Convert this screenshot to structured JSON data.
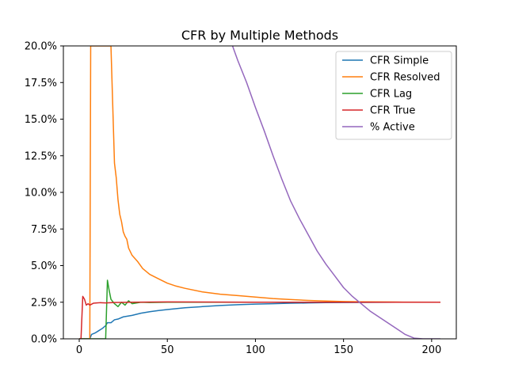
{
  "chart_data": {
    "type": "line",
    "title": "CFR by Multiple Methods",
    "xlabel": "",
    "ylabel": "",
    "xlim": [
      -9,
      214
    ],
    "ylim": [
      0,
      0.2
    ],
    "x_ticks": [
      0,
      50,
      100,
      150,
      200
    ],
    "y_ticks": [
      0,
      0.025,
      0.05,
      0.075,
      0.1,
      0.125,
      0.15,
      0.175,
      0.2
    ],
    "y_tick_labels": [
      "0.0%",
      "2.5%",
      "5.0%",
      "7.5%",
      "10.0%",
      "12.5%",
      "15.0%",
      "17.5%",
      "20.0%"
    ],
    "grid": false,
    "legend_position": "top-right",
    "series": [
      {
        "name": "CFR Simple",
        "color": "#1f77b4",
        "points": [
          [
            0,
            0
          ],
          [
            6,
            0
          ],
          [
            7,
            0.003
          ],
          [
            9,
            0.004
          ],
          [
            11,
            0.0055
          ],
          [
            13,
            0.007
          ],
          [
            15,
            0.009
          ],
          [
            16,
            0.011
          ],
          [
            18,
            0.011
          ],
          [
            20,
            0.013
          ],
          [
            22,
            0.0135
          ],
          [
            25,
            0.015
          ],
          [
            30,
            0.016
          ],
          [
            35,
            0.0175
          ],
          [
            40,
            0.0185
          ],
          [
            45,
            0.0193
          ],
          [
            50,
            0.02
          ],
          [
            60,
            0.0212
          ],
          [
            70,
            0.022
          ],
          [
            80,
            0.0228
          ],
          [
            90,
            0.0233
          ],
          [
            100,
            0.0237
          ],
          [
            110,
            0.024
          ],
          [
            120,
            0.0243
          ],
          [
            130,
            0.0245
          ],
          [
            140,
            0.0247
          ],
          [
            150,
            0.0248
          ],
          [
            160,
            0.0249
          ],
          [
            180,
            0.025
          ],
          [
            205,
            0.025
          ]
        ]
      },
      {
        "name": "CFR Resolved",
        "color": "#ff7f0e",
        "points": [
          [
            0,
            0
          ],
          [
            6,
            0
          ],
          [
            6.5,
            0.2
          ],
          [
            18,
            0.2
          ],
          [
            20,
            0.12
          ],
          [
            21,
            0.11
          ],
          [
            22,
            0.095
          ],
          [
            23,
            0.085
          ],
          [
            24,
            0.08
          ],
          [
            25,
            0.073
          ],
          [
            26,
            0.07
          ],
          [
            27,
            0.068
          ],
          [
            28,
            0.062
          ],
          [
            30,
            0.057
          ],
          [
            33,
            0.053
          ],
          [
            36,
            0.048
          ],
          [
            40,
            0.044
          ],
          [
            45,
            0.041
          ],
          [
            50,
            0.038
          ],
          [
            55,
            0.036
          ],
          [
            60,
            0.0345
          ],
          [
            70,
            0.032
          ],
          [
            80,
            0.0305
          ],
          [
            90,
            0.0295
          ],
          [
            100,
            0.0285
          ],
          [
            110,
            0.0275
          ],
          [
            120,
            0.0268
          ],
          [
            130,
            0.0262
          ],
          [
            140,
            0.0258
          ],
          [
            150,
            0.0255
          ],
          [
            160,
            0.0253
          ],
          [
            180,
            0.0251
          ],
          [
            205,
            0.025
          ]
        ]
      },
      {
        "name": "CFR Lag",
        "color": "#2ca02c",
        "points": [
          [
            0,
            0
          ],
          [
            15,
            0
          ],
          [
            16,
            0.04
          ],
          [
            17,
            0.033
          ],
          [
            18,
            0.027
          ],
          [
            20,
            0.024
          ],
          [
            22,
            0.022
          ],
          [
            24,
            0.025
          ],
          [
            26,
            0.023
          ],
          [
            28,
            0.026
          ],
          [
            30,
            0.024
          ],
          [
            35,
            0.025
          ],
          [
            40,
            0.0248
          ],
          [
            50,
            0.025
          ],
          [
            205,
            0.025
          ]
        ]
      },
      {
        "name": "CFR True",
        "color": "#d62728",
        "points": [
          [
            0,
            0
          ],
          [
            1,
            0
          ],
          [
            2,
            0.029
          ],
          [
            3,
            0.027
          ],
          [
            4,
            0.023
          ],
          [
            5,
            0.024
          ],
          [
            6,
            0.023
          ],
          [
            8,
            0.0243
          ],
          [
            10,
            0.0245
          ],
          [
            12,
            0.0247
          ],
          [
            15,
            0.0245
          ],
          [
            20,
            0.0248
          ],
          [
            30,
            0.025
          ],
          [
            50,
            0.0252
          ],
          [
            100,
            0.025
          ],
          [
            150,
            0.025
          ],
          [
            205,
            0.025
          ]
        ]
      },
      {
        "name": "% Active",
        "color": "#9467bd",
        "points": [
          [
            87,
            0.2
          ],
          [
            90,
            0.19
          ],
          [
            95,
            0.175
          ],
          [
            100,
            0.158
          ],
          [
            105,
            0.142
          ],
          [
            110,
            0.125
          ],
          [
            115,
            0.109
          ],
          [
            120,
            0.094
          ],
          [
            125,
            0.082
          ],
          [
            130,
            0.071
          ],
          [
            135,
            0.06
          ],
          [
            140,
            0.051
          ],
          [
            145,
            0.043
          ],
          [
            150,
            0.035
          ],
          [
            155,
            0.029
          ],
          [
            160,
            0.024
          ],
          [
            165,
            0.019
          ],
          [
            170,
            0.015
          ],
          [
            175,
            0.011
          ],
          [
            180,
            0.007
          ],
          [
            185,
            0.003
          ],
          [
            190,
            0.0005
          ],
          [
            195,
            0
          ],
          [
            205,
            0
          ]
        ]
      }
    ]
  }
}
